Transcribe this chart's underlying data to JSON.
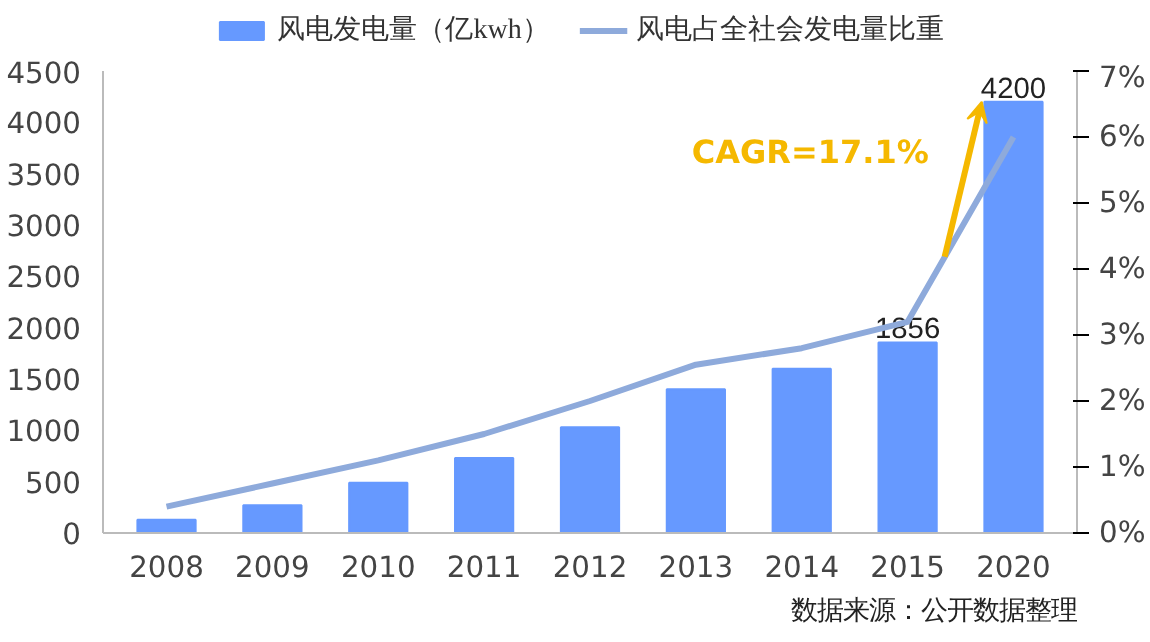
{
  "chart_data": {
    "type": "bar",
    "categories": [
      "2008",
      "2009",
      "2010",
      "2011",
      "2012",
      "2013",
      "2014",
      "2015",
      "2020"
    ],
    "series": [
      {
        "name": "风电发电量（亿kwh）",
        "color": "#6699ff",
        "values": [
          130,
          270,
          490,
          730,
          1030,
          1400,
          1600,
          1856,
          4200
        ],
        "value_labels": [
          null,
          null,
          null,
          null,
          null,
          null,
          null,
          "1856",
          "4200"
        ]
      },
      {
        "name": "风电占全社会发电量比重",
        "type": "line",
        "axis": "y2",
        "color": "#8eaadb",
        "values": [
          0.4,
          0.75,
          1.1,
          1.5,
          2.0,
          2.55,
          2.8,
          3.2,
          6.0
        ]
      }
    ],
    "ylim": [
      0,
      4500
    ],
    "yticks": [
      0,
      500,
      1000,
      1500,
      2000,
      2500,
      3000,
      3500,
      4000,
      4500
    ],
    "y2lim": [
      0,
      7
    ],
    "y2ticks": [
      {
        "value": 0,
        "label": "0%"
      },
      {
        "value": 1,
        "label": "1%"
      },
      {
        "value": 2,
        "label": "2%"
      },
      {
        "value": 3,
        "label": "3%"
      },
      {
        "value": 4,
        "label": "4%"
      },
      {
        "value": 5,
        "label": "5%"
      },
      {
        "value": 6,
        "label": "6%"
      },
      {
        "value": 7,
        "label": "7%"
      }
    ],
    "annotations": [
      "CAGR=17.1%",
      "数据来源：公开数据整理"
    ],
    "legend": "top",
    "grid": false
  }
}
